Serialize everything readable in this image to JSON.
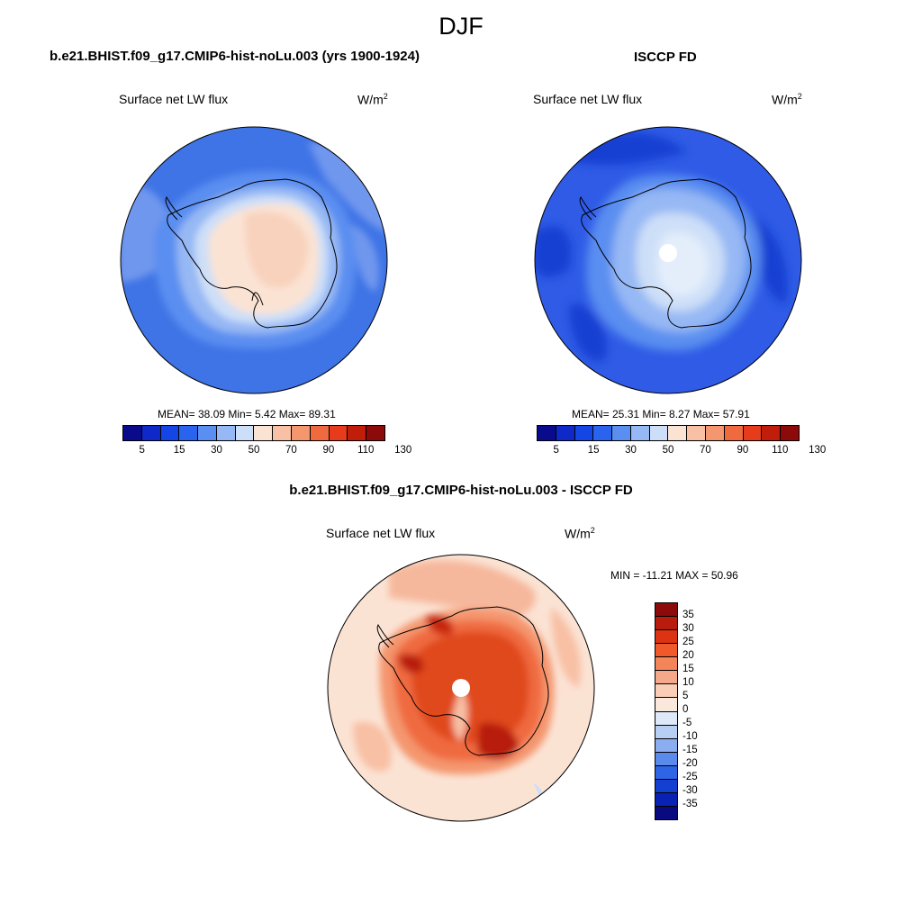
{
  "season": "DJF",
  "panel_model": {
    "title": "b.e21.BHIST.f09_g17.CMIP6-hist-noLu.003 (yrs 1900-1924)",
    "variable": "Surface net LW flux",
    "units": "W/m",
    "units_exp": "2",
    "stats": "MEAN=  38.09  Min=   5.42  Max=  89.31",
    "mean": 38.09,
    "min": 5.42,
    "max": 89.31
  },
  "panel_obs": {
    "title": "ISCCP FD",
    "variable": "Surface net LW flux",
    "units": "W/m",
    "units_exp": "2",
    "stats": "MEAN=  25.31  Min=   8.27  Max=  57.91",
    "mean": 25.31,
    "min": 8.27,
    "max": 57.91
  },
  "abs_colorbar": {
    "ticks": [
      "5",
      "15",
      "30",
      "50",
      "70",
      "90",
      "110",
      "130"
    ],
    "colors": [
      "#0a0a8c",
      "#0f28c8",
      "#1446e6",
      "#2a64ee",
      "#5a8ef0",
      "#96b8f4",
      "#cddff8",
      "#fbe3d4",
      "#f8c0a4",
      "#f4966e",
      "#f06a40",
      "#e63c1c",
      "#c01e0a",
      "#8c0a0a"
    ]
  },
  "panel_diff": {
    "title": "b.e21.BHIST.f09_g17.CMIP6-hist-noLu.003 - ISCCP FD",
    "variable": "Surface net LW flux",
    "units": "W/m",
    "units_exp": "2",
    "stats": "MIN = -11.21 MAX =  50.96",
    "min": -11.21,
    "max": 50.96
  },
  "diff_colorbar": {
    "ticks": [
      "35",
      "30",
      "25",
      "20",
      "15",
      "10",
      "5",
      "0",
      "-5",
      "-10",
      "-15",
      "-20",
      "-25",
      "-30",
      "-35"
    ],
    "colors": [
      "#8c0a0a",
      "#b81c0c",
      "#dc3412",
      "#f05a2a",
      "#f4845a",
      "#f6a88a",
      "#f9cdb6",
      "#fbe8dc",
      "#dde8f8",
      "#b8cff4",
      "#8aaef0",
      "#5a8aec",
      "#2e64e6",
      "#1440d2",
      "#0a22b4",
      "#0a0a80"
    ]
  },
  "colors": {
    "ocean_model": "#3f74e6",
    "ocean_obs": "#2f5be6",
    "diff_background": "#fbe3d4",
    "coastline": "#000000"
  }
}
